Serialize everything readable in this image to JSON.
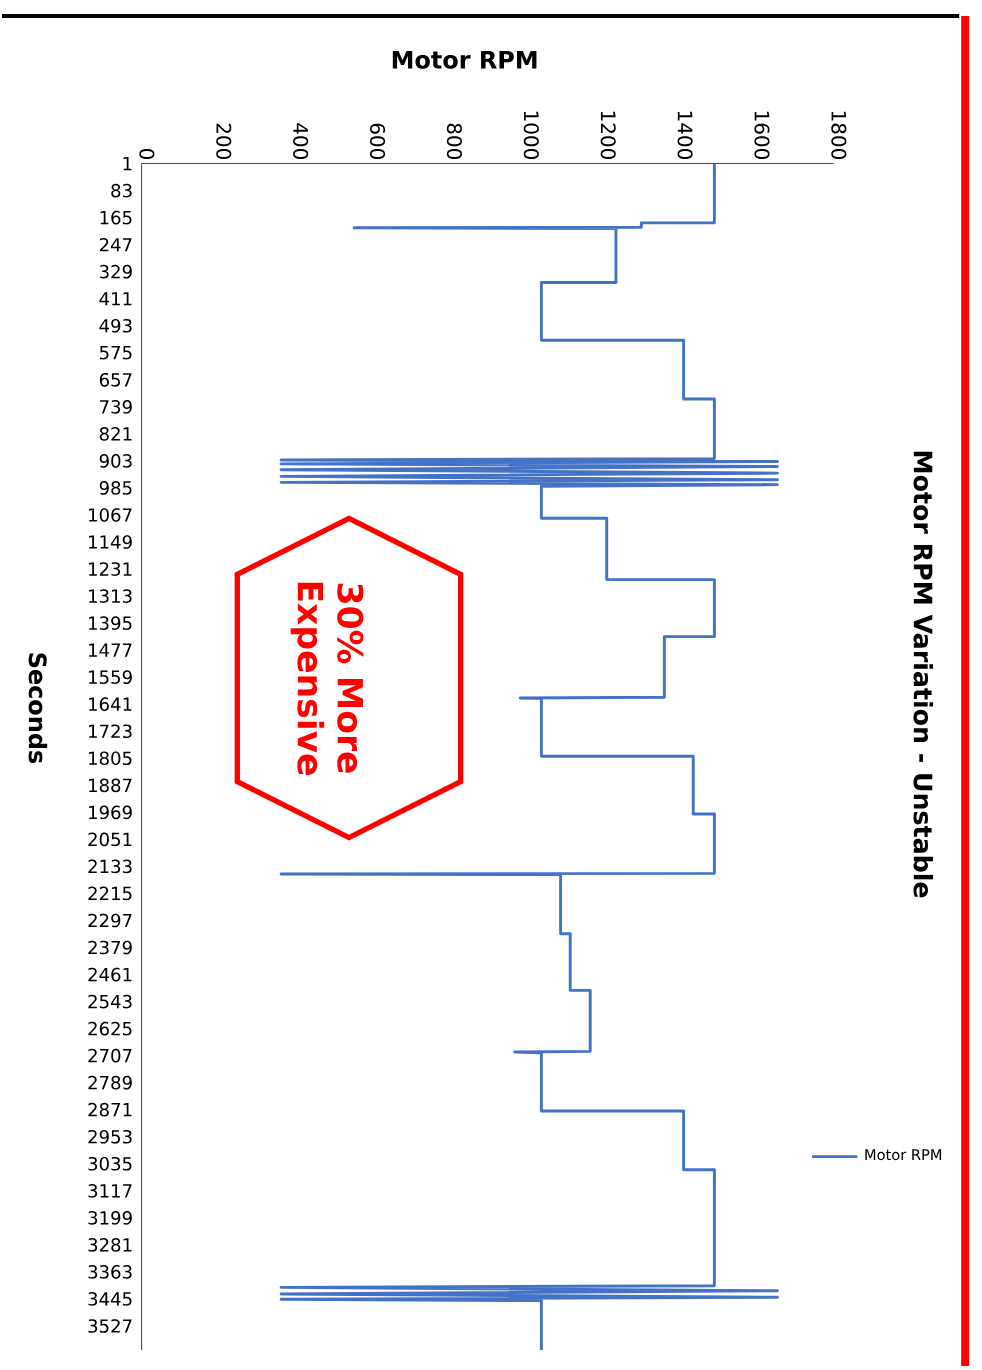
{
  "chart_data": {
    "type": "line",
    "title": "Motor RPM Variation - Unstable",
    "xlabel": "Motor RPM",
    "ylabel": "Seconds",
    "x": [
      1490,
      1490,
      1300,
      1300,
      553,
      1234,
      1234,
      1040,
      1040,
      1410,
      1410,
      1490,
      1490,
      363,
      1654,
      363,
      1654,
      363,
      1654,
      363,
      1654,
      363,
      1654,
      1040,
      1040,
      1210,
      1210,
      1490,
      1490,
      1360,
      1360,
      985,
      1040,
      1040,
      1435,
      1435,
      1490,
      1490,
      363,
      1090,
      1090,
      1115,
      1115,
      1167,
      1167,
      971,
      1040,
      1040,
      1410,
      1410,
      1490,
      1490,
      363,
      1654,
      363,
      1654,
      363,
      1040,
      1040
    ],
    "series": [
      {
        "name": "Motor RPM",
        "color": "#4472c4",
        "values": [
          1,
          181,
          181,
          194,
          196,
          198,
          362,
          362,
          537,
          537,
          715,
          715,
          896,
          900,
          905,
          912,
          920,
          930,
          940,
          950,
          960,
          968,
          975,
          980,
          1077,
          1077,
          1263,
          1263,
          1436,
          1436,
          1620,
          1622,
          1624,
          1799,
          1799,
          1974,
          1974,
          2154,
          2156,
          2158,
          2337,
          2337,
          2509,
          2509,
          2694,
          2696,
          2698,
          2875,
          2875,
          3053,
          3053,
          3405,
          3410,
          3420,
          3430,
          3440,
          3446,
          3450,
          3600
        ]
      }
    ],
    "xlim": [
      0,
      1800
    ],
    "ylim": [
      3600,
      1
    ],
    "xticks": [
      0,
      200,
      400,
      600,
      800,
      1000,
      1200,
      1400,
      1600,
      1800
    ],
    "yticks": [
      1,
      83,
      165,
      247,
      329,
      411,
      493,
      575,
      657,
      739,
      821,
      903,
      985,
      1067,
      1149,
      1231,
      1313,
      1395,
      1477,
      1559,
      1641,
      1723,
      1805,
      1887,
      1969,
      2051,
      2133,
      2215,
      2297,
      2379,
      2461,
      2543,
      2625,
      2707,
      2789,
      2871,
      2953,
      3035,
      3117,
      3199,
      3281,
      3363,
      3445,
      3527
    ],
    "legend": "right",
    "marker": "none",
    "annotations": [
      "30% More Expensive"
    ]
  }
}
